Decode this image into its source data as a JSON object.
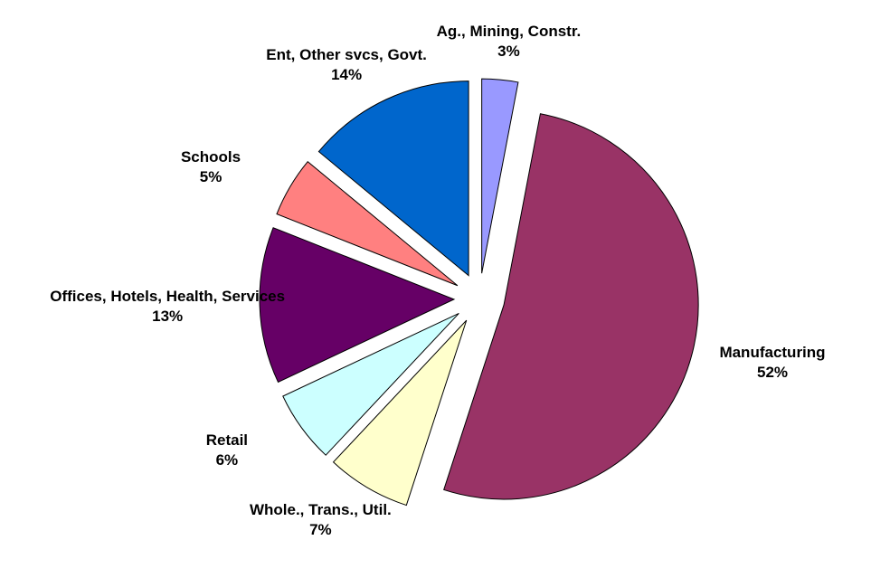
{
  "chart_data": {
    "type": "pie",
    "categories": [
      "Ag., Mining, Constr.",
      "Manufacturing",
      "Whole., Trans., Util.",
      "Retail",
      "Offices, Hotels, Health, Services",
      "Schools",
      "Ent, Other svcs, Govt."
    ],
    "values": [
      3,
      52,
      7,
      6,
      13,
      5,
      14
    ],
    "value_labels": [
      "3%",
      "52%",
      "7%",
      "6%",
      "13%",
      "5%",
      "14%"
    ],
    "colors": [
      "#9999ff",
      "#993366",
      "#ffffcc",
      "#ccffff",
      "#660066",
      "#ff8080",
      "#0066cc"
    ]
  }
}
